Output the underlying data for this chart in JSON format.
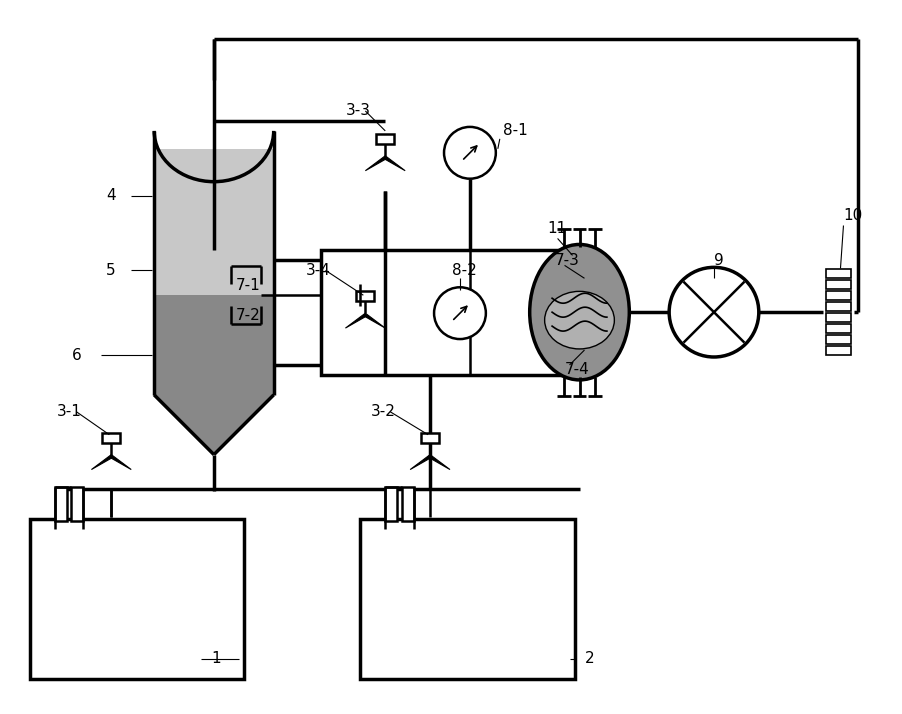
{
  "bg": "#ffffff",
  "lc": "#000000",
  "lw": 1.8,
  "lw2": 2.5,
  "tank1_fill": "#636363",
  "tank2_fill": "#b0b0b0",
  "vessel_light": "#c8c8c8",
  "vessel_dark": "#888888",
  "cav_fill": "#909090",
  "cav_dark": "#707070"
}
